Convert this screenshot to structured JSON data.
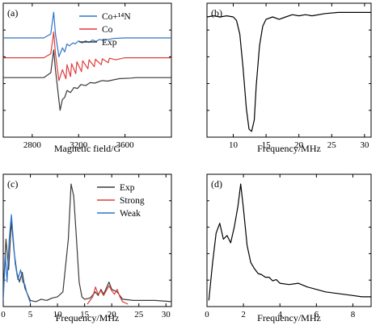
{
  "colors": {
    "blue": "#2e74c8",
    "red": "#e03c3c",
    "black": "#3a3a3a",
    "axis": "#000000"
  },
  "chart_data": [
    {
      "panel_label": "(a)",
      "type": "line",
      "xlabel": "Magnetic field/G",
      "ylabel": "",
      "xlim": [
        2550,
        4000
      ],
      "ylim": [
        -6,
        7.5
      ],
      "x_ticks": [
        2800,
        3200,
        3600
      ],
      "y_ticks_labeled": false,
      "grid": false,
      "legend": "top-right",
      "series": [
        {
          "name": "Co+¹⁴N",
          "color": "#2e74c8",
          "offset": 4,
          "points": [
            [
              2550,
              0
            ],
            [
              2900,
              0
            ],
            [
              2960,
              0.4
            ],
            [
              2985,
              2.6
            ],
            [
              3000,
              0.4
            ],
            [
              3030,
              -1.9
            ],
            [
              3060,
              -1.0
            ],
            [
              3080,
              -1.4
            ],
            [
              3100,
              -0.6
            ],
            [
              3120,
              -0.8
            ],
            [
              3150,
              -0.5
            ],
            [
              3170,
              -0.6
            ],
            [
              3200,
              -0.3
            ],
            [
              3230,
              -0.5
            ],
            [
              3260,
              -0.3
            ],
            [
              3290,
              -0.45
            ],
            [
              3320,
              -0.2
            ],
            [
              3350,
              -0.35
            ],
            [
              3380,
              -0.15
            ],
            [
              3410,
              -0.25
            ],
            [
              3500,
              -0.05
            ],
            [
              3600,
              0
            ],
            [
              4000,
              0
            ]
          ]
        },
        {
          "name": "Co",
          "color": "#e03c3c",
          "offset": 2,
          "points": [
            [
              2550,
              0
            ],
            [
              2900,
              0
            ],
            [
              2960,
              0.4
            ],
            [
              2985,
              2.6
            ],
            [
              3000,
              0.4
            ],
            [
              3030,
              -2.3
            ],
            [
              3060,
              -1.2
            ],
            [
              3090,
              -2.1
            ],
            [
              3100,
              -0.7
            ],
            [
              3130,
              -1.9
            ],
            [
              3140,
              -0.6
            ],
            [
              3175,
              -1.6
            ],
            [
              3185,
              -0.4
            ],
            [
              3225,
              -1.4
            ],
            [
              3235,
              -0.3
            ],
            [
              3280,
              -1.1
            ],
            [
              3290,
              -0.2
            ],
            [
              3335,
              -0.9
            ],
            [
              3345,
              -0.15
            ],
            [
              3395,
              -0.7
            ],
            [
              3405,
              -0.1
            ],
            [
              3455,
              -0.5
            ],
            [
              3465,
              -0.05
            ],
            [
              3520,
              -0.2
            ],
            [
              3600,
              0
            ],
            [
              4000,
              0
            ]
          ]
        },
        {
          "name": "Exp",
          "color": "#3a3a3a",
          "offset": 0,
          "points": [
            [
              2550,
              0
            ],
            [
              2900,
              0
            ],
            [
              2960,
              0.5
            ],
            [
              2985,
              2.8
            ],
            [
              3000,
              0.8
            ],
            [
              3020,
              -1.2
            ],
            [
              3040,
              -3.3
            ],
            [
              3060,
              -2.2
            ],
            [
              3080,
              -2.0
            ],
            [
              3100,
              -1.3
            ],
            [
              3130,
              -1.5
            ],
            [
              3160,
              -1.0
            ],
            [
              3190,
              -1.1
            ],
            [
              3220,
              -0.7
            ],
            [
              3260,
              -0.8
            ],
            [
              3300,
              -0.5
            ],
            [
              3340,
              -0.55
            ],
            [
              3400,
              -0.3
            ],
            [
              3450,
              -0.35
            ],
            [
              3550,
              -0.1
            ],
            [
              3650,
              -0.05
            ],
            [
              3700,
              0
            ],
            [
              4000,
              0
            ]
          ]
        }
      ]
    },
    {
      "panel_label": "(b)",
      "type": "line",
      "xlabel": "Frequency/MHz",
      "ylabel": "",
      "xlim": [
        6,
        31
      ],
      "ylim": [
        -1.05,
        0.12
      ],
      "x_ticks": [
        10,
        15,
        20,
        25,
        30
      ],
      "y_ticks_labeled": false,
      "grid": false,
      "series": [
        {
          "name": "",
          "color": "#000000",
          "points": [
            [
              6,
              0
            ],
            [
              7,
              0.01
            ],
            [
              8,
              0.0
            ],
            [
              9,
              0.01
            ],
            [
              10,
              0.0
            ],
            [
              10.5,
              -0.03
            ],
            [
              11,
              -0.15
            ],
            [
              11.5,
              -0.45
            ],
            [
              12,
              -0.8
            ],
            [
              12.4,
              -0.98
            ],
            [
              12.8,
              -1.0
            ],
            [
              13.2,
              -0.9
            ],
            [
              13.5,
              -0.6
            ],
            [
              14,
              -0.25
            ],
            [
              14.5,
              -0.08
            ],
            [
              15,
              -0.02
            ],
            [
              16,
              0.0
            ],
            [
              17,
              -0.02
            ],
            [
              18,
              0.0
            ],
            [
              19,
              0.02
            ],
            [
              20,
              0.01
            ],
            [
              21,
              0.02
            ],
            [
              22,
              0.01
            ],
            [
              24,
              0.03
            ],
            [
              26,
              0.04
            ],
            [
              28,
              0.04
            ],
            [
              31,
              0.04
            ]
          ]
        }
      ]
    },
    {
      "panel_label": "(c)",
      "type": "line",
      "xlabel": "Frequency/MHz",
      "ylabel": "",
      "xlim": [
        0,
        31
      ],
      "ylim": [
        0,
        1.08
      ],
      "x_ticks": [
        0,
        5,
        10,
        15,
        20,
        25,
        30
      ],
      "y_ticks_labeled": false,
      "grid": false,
      "legend": "top-right",
      "series": [
        {
          "name": "Exp",
          "color": "#3a3a3a",
          "points": [
            [
              0,
              0.12
            ],
            [
              0.5,
              0.55
            ],
            [
              1,
              0.3
            ],
            [
              1.5,
              0.7
            ],
            [
              2,
              0.45
            ],
            [
              2.5,
              0.28
            ],
            [
              3,
              0.2
            ],
            [
              3.5,
              0.28
            ],
            [
              4,
              0.15
            ],
            [
              5,
              0.05
            ],
            [
              6,
              0.04
            ],
            [
              7,
              0.06
            ],
            [
              8,
              0.05
            ],
            [
              9,
              0.07
            ],
            [
              10,
              0.08
            ],
            [
              11,
              0.12
            ],
            [
              12,
              0.55
            ],
            [
              12.5,
              1.0
            ],
            [
              13,
              0.9
            ],
            [
              13.5,
              0.55
            ],
            [
              14,
              0.2
            ],
            [
              14.5,
              0.08
            ],
            [
              15,
              0.06
            ],
            [
              16,
              0.07
            ],
            [
              17,
              0.12
            ],
            [
              17.5,
              0.09
            ],
            [
              18,
              0.14
            ],
            [
              18.5,
              0.1
            ],
            [
              19,
              0.15
            ],
            [
              19.5,
              0.2
            ],
            [
              20,
              0.14
            ],
            [
              21,
              0.12
            ],
            [
              22,
              0.06
            ],
            [
              24,
              0.05
            ],
            [
              26,
              0.05
            ],
            [
              28,
              0.05
            ],
            [
              31,
              0.04
            ]
          ]
        },
        {
          "name": "Strong",
          "color": "#e03c3c",
          "points": [
            [
              15.5,
              0.02
            ],
            [
              16.5,
              0.08
            ],
            [
              17,
              0.16
            ],
            [
              17.5,
              0.1
            ],
            [
              18,
              0.13
            ],
            [
              18.5,
              0.09
            ],
            [
              19.5,
              0.17
            ],
            [
              20,
              0.13
            ],
            [
              20.5,
              0.1
            ],
            [
              21,
              0.14
            ],
            [
              21.5,
              0.08
            ],
            [
              22,
              0.04
            ],
            [
              23,
              0.02
            ]
          ]
        },
        {
          "name": "Weak",
          "color": "#2e74c8",
          "points": [
            [
              0,
              0.05
            ],
            [
              0.4,
              0.42
            ],
            [
              0.7,
              0.2
            ],
            [
              1.1,
              0.55
            ],
            [
              1.5,
              0.75
            ],
            [
              1.8,
              0.58
            ],
            [
              2.2,
              0.35
            ],
            [
              2.7,
              0.22
            ],
            [
              3.2,
              0.3
            ],
            [
              3.6,
              0.2
            ],
            [
              4,
              0.18
            ],
            [
              4.3,
              0.12
            ],
            [
              5,
              0.03
            ]
          ]
        }
      ]
    },
    {
      "panel_label": "(d)",
      "type": "line",
      "xlabel": "Frequency/MHz",
      "ylabel": "",
      "xlim": [
        0,
        9
      ],
      "ylim": [
        0,
        1.08
      ],
      "x_ticks": [
        0,
        2,
        4,
        6,
        8
      ],
      "y_ticks_labeled": false,
      "grid": false,
      "series": [
        {
          "name": "",
          "color": "#000000",
          "points": [
            [
              0.1,
              0.05
            ],
            [
              0.3,
              0.35
            ],
            [
              0.5,
              0.6
            ],
            [
              0.7,
              0.68
            ],
            [
              0.9,
              0.55
            ],
            [
              1.1,
              0.58
            ],
            [
              1.3,
              0.52
            ],
            [
              1.5,
              0.65
            ],
            [
              1.7,
              0.82
            ],
            [
              1.85,
              1.0
            ],
            [
              2.0,
              0.8
            ],
            [
              2.2,
              0.5
            ],
            [
              2.4,
              0.36
            ],
            [
              2.6,
              0.31
            ],
            [
              2.8,
              0.27
            ],
            [
              3.0,
              0.26
            ],
            [
              3.2,
              0.24
            ],
            [
              3.4,
              0.24
            ],
            [
              3.6,
              0.21
            ],
            [
              3.8,
              0.22
            ],
            [
              4.0,
              0.19
            ],
            [
              4.5,
              0.18
            ],
            [
              5.0,
              0.19
            ],
            [
              5.5,
              0.16
            ],
            [
              6.0,
              0.14
            ],
            [
              6.5,
              0.12
            ],
            [
              7.0,
              0.11
            ],
            [
              7.5,
              0.1
            ],
            [
              8.0,
              0.09
            ],
            [
              8.5,
              0.08
            ],
            [
              9.0,
              0.08
            ]
          ]
        }
      ]
    }
  ]
}
